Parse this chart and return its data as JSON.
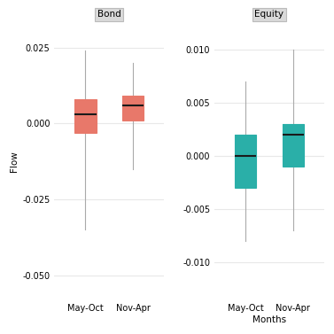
{
  "bond": {
    "may_oct": {
      "median": 0.003,
      "q1": -0.003,
      "q3": 0.008,
      "whisker_low": -0.035,
      "whisker_high": 0.024
    },
    "nov_apr": {
      "median": 0.006,
      "q1": 0.001,
      "q3": 0.009,
      "whisker_low": -0.015,
      "whisker_high": 0.02
    },
    "color": "#E8786A",
    "title": "Bond",
    "ylim": [
      -0.058,
      0.033
    ],
    "yticks": [
      -0.05,
      -0.025,
      0.0,
      0.025
    ]
  },
  "equity": {
    "may_oct": {
      "median": 0.0,
      "q1": -0.003,
      "q3": 0.002,
      "whisker_low": -0.008,
      "whisker_high": 0.007
    },
    "nov_apr": {
      "median": 0.002,
      "q1": -0.001,
      "q3": 0.003,
      "whisker_low": -0.007,
      "whisker_high": 0.01
    },
    "color": "#2AAFA8",
    "title": "Equity",
    "ylim": [
      -0.0135,
      0.0125
    ],
    "yticks": [
      -0.01,
      -0.005,
      0.0,
      0.005,
      0.01
    ]
  },
  "categories": [
    "May-Oct",
    "Nov-Apr"
  ],
  "xlabel": "Months",
  "ylabel": "Flow",
  "background_color": "#FFFFFF",
  "panel_bg": "#FFFFFF",
  "grid_color": "#E8E8E8",
  "title_bg": "#D9D9D9",
  "title_edge": "#BBBBBB",
  "median_color": "#1A1A1A",
  "whisker_color": "#AAAAAA",
  "fontsize": 7.5,
  "tick_fontsize": 7,
  "title_fontsize": 7.5
}
